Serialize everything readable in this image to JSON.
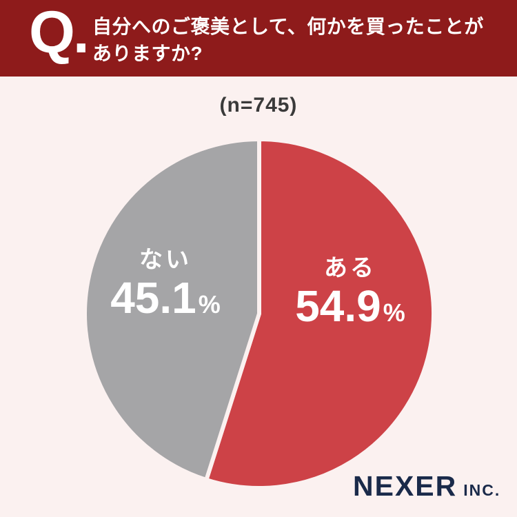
{
  "theme": {
    "background": "#FBF1F0",
    "header_bg": "#8E1B1B",
    "header_text": "#FFFFFF",
    "sample_text": "#3A3A3A",
    "logo_color": "#1A2A4A",
    "slice_gap_color": "#FBF1F0",
    "slice_gap_width": 6
  },
  "header": {
    "q_label": "Q.",
    "title_line1": "自分へのご褒美として、何かを買ったことが",
    "title_line2": "ありますか?"
  },
  "chart_data": {
    "type": "pie",
    "title": "自分へのご褒美として、何かを買ったことがありますか?",
    "sample_size_label": "(n=745)",
    "sample_size": 745,
    "start_angle_deg": 0,
    "direction": "clockwise",
    "legend_position": "inside",
    "slices": [
      {
        "label": "ある",
        "value": 54.9,
        "display_value": "54.9",
        "unit": "%",
        "color": "#CD4247"
      },
      {
        "label": "ない",
        "value": 45.1,
        "display_value": "45.1",
        "unit": "%",
        "color": "#A5A5A7"
      }
    ]
  },
  "footer": {
    "logo_main": "NEXER",
    "logo_suffix": "INC."
  }
}
